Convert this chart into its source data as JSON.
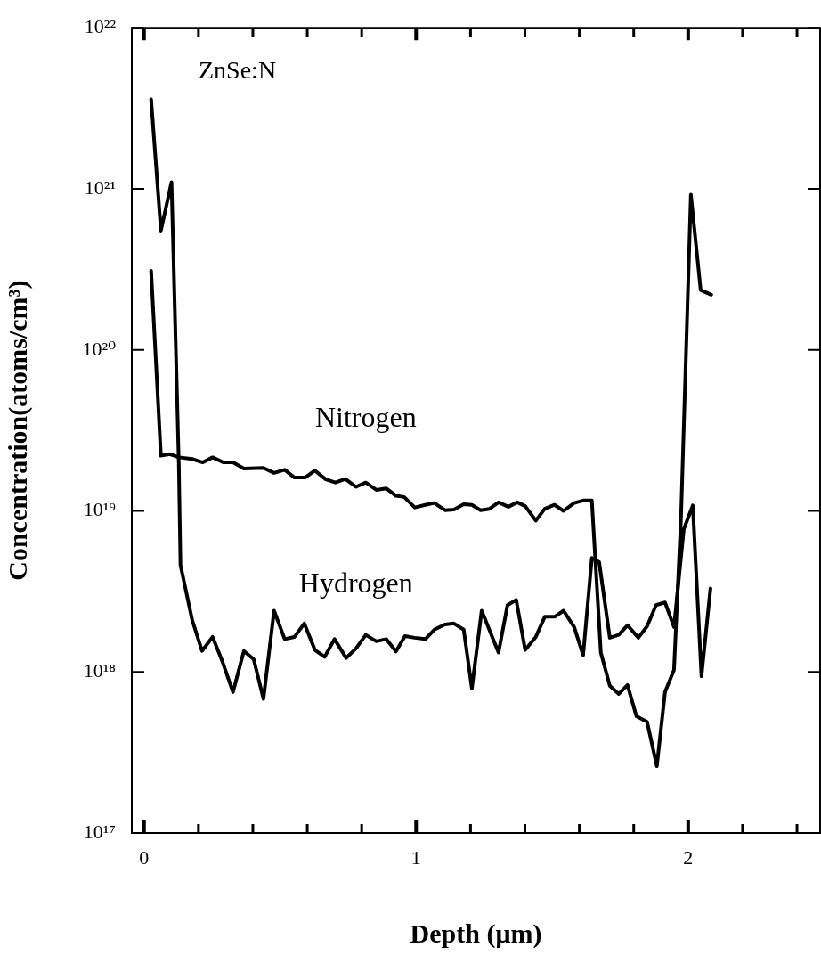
{
  "chart_data": {
    "type": "line",
    "xlabel": "Depth (μm)",
    "ylabel": "Concentration(atoms/cm³)",
    "annotations": [
      "ZnSe:N"
    ],
    "log": "y",
    "grid": false,
    "legend": false,
    "marker": "none",
    "line_style": "solid",
    "xlim": [
      -0.045,
      2.485
    ],
    "xticks": [
      0,
      {
        "value": 0.2,
        "label": null
      },
      {
        "value": 0.4,
        "label": null
      },
      {
        "value": 0.6,
        "label": null
      },
      {
        "value": 0.8,
        "label": null
      },
      1,
      {
        "value": 1.2,
        "label": null
      },
      {
        "value": 1.4,
        "label": null
      },
      {
        "value": 1.6,
        "label": null
      },
      {
        "value": 1.8,
        "label": null
      },
      2,
      {
        "value": 2.2,
        "label": null
      },
      {
        "value": 2.4,
        "label": null
      }
    ],
    "ylim": [
      1e+17,
      1e+22
    ],
    "yticks": [
      {
        "value": 1e+17,
        "label": "10¹⁷"
      },
      {
        "value": 1e+18,
        "label": "10¹⁸"
      },
      {
        "value": 1e+19,
        "label": "10¹⁹"
      },
      {
        "value": 1e+20,
        "label": "10²⁰"
      },
      {
        "value": 1e+21,
        "label": "10²¹"
      },
      {
        "value": 1e+22,
        "label": "10²²"
      }
    ],
    "series": [
      {
        "name": "Nitrogen",
        "color": "#000000",
        "x": [
          0.026,
          0.062,
          0.095,
          0.128,
          0.177,
          0.216,
          0.252,
          0.291,
          0.327,
          0.367,
          0.439,
          0.478,
          0.517,
          0.553,
          0.592,
          0.628,
          0.668,
          0.704,
          0.74,
          0.779,
          0.815,
          0.854,
          0.89,
          0.926,
          0.956,
          0.995,
          1.034,
          1.067,
          1.106,
          1.139,
          1.175,
          1.205,
          1.237,
          1.27,
          1.303,
          1.339,
          1.372,
          1.401,
          1.44,
          1.473,
          1.509,
          1.542,
          1.581,
          1.614,
          1.646,
          1.679,
          1.712,
          1.745,
          1.777,
          1.81,
          1.849,
          1.885,
          1.915,
          1.948,
          1.974,
          2.01,
          2.046,
          2.085
        ],
        "values": [
          3.1e+20,
          2.2e+19,
          2.25e+19,
          2.15e+19,
          2.1e+19,
          2e+19,
          2.15e+19,
          2e+19,
          2e+19,
          1.83e+19,
          1.85e+19,
          1.72e+19,
          1.8e+19,
          1.61e+19,
          1.61e+19,
          1.78e+19,
          1.57e+19,
          1.5e+19,
          1.58e+19,
          1.41e+19,
          1.5e+19,
          1.35e+19,
          1.38e+19,
          1.24e+19,
          1.22e+19,
          1.05e+19,
          1.09e+19,
          1.12e+19,
          1.01e+19,
          1.02e+19,
          1.1e+19,
          1.09e+19,
          1.01e+19,
          1.03e+19,
          1.13e+19,
          1.06e+19,
          1.13e+19,
          1.07e+19,
          8.7e+18,
          1.03e+19,
          1.09e+19,
          1e+19,
          1.12e+19,
          1.16e+19,
          1.16e+19,
          1.32e+18,
          8.2e+17,
          7.3e+17,
          8.3e+17,
          5.3e+17,
          4.9e+17,
          2.6e+17,
          7.5e+17,
          1.03e+18,
          9.3e+18,
          9.2e+20,
          2.35e+20,
          2.2e+20
        ]
      },
      {
        "name": "Hydrogen",
        "color": "#000000",
        "x": [
          0.026,
          0.062,
          0.101,
          0.128,
          0.134,
          0.177,
          0.213,
          0.252,
          0.288,
          0.327,
          0.367,
          0.403,
          0.439,
          0.478,
          0.517,
          0.553,
          0.589,
          0.628,
          0.664,
          0.7,
          0.743,
          0.779,
          0.815,
          0.854,
          0.89,
          0.926,
          0.959,
          0.995,
          1.034,
          1.067,
          1.106,
          1.139,
          1.175,
          1.205,
          1.241,
          1.303,
          1.336,
          1.368,
          1.401,
          1.44,
          1.473,
          1.509,
          1.542,
          1.581,
          1.614,
          1.646,
          1.673,
          1.712,
          1.745,
          1.777,
          1.817,
          1.849,
          1.882,
          1.915,
          1.948,
          1.984,
          2.017,
          2.049,
          2.082
        ],
        "values": [
          3.6e+21,
          5.5e+20,
          1.1e+21,
          1.9e+19,
          4.6e+18,
          2.1e+18,
          1.35e+18,
          1.65e+18,
          1.16e+18,
          7.5e+17,
          1.35e+18,
          1.2e+18,
          6.8e+17,
          2.4e+18,
          1.6e+18,
          1.65e+18,
          2e+18,
          1.37e+18,
          1.24e+18,
          1.6e+18,
          1.22e+18,
          1.4e+18,
          1.7e+18,
          1.55e+18,
          1.6e+18,
          1.34e+18,
          1.67e+18,
          1.63e+18,
          1.6e+18,
          1.83e+18,
          1.97e+18,
          2e+18,
          1.83e+18,
          7.9e+17,
          2.4e+18,
          1.32e+18,
          2.6e+18,
          2.8e+18,
          1.37e+18,
          1.65e+18,
          2.2e+18,
          2.2e+18,
          2.4e+18,
          1.9e+18,
          1.27e+18,
          5.1e+18,
          4.8e+18,
          1.63e+18,
          1.7e+18,
          1.95e+18,
          1.63e+18,
          1.92e+18,
          2.6e+18,
          2.7e+18,
          1.9e+18,
          7.7e+18,
          1.08e+19,
          9.4e+17,
          3.3e+18
        ]
      }
    ]
  }
}
